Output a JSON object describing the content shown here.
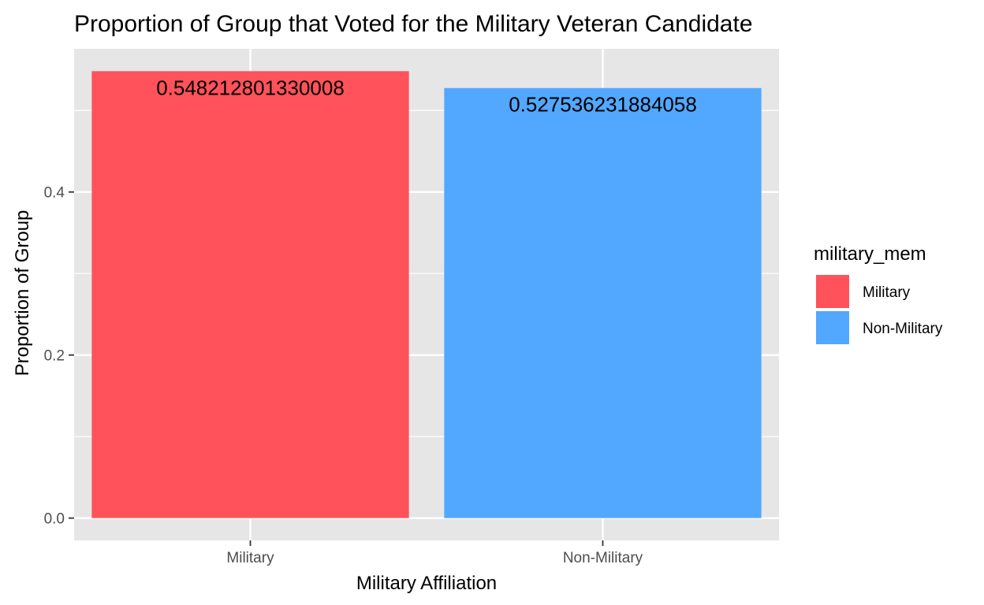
{
  "chart_data": {
    "type": "bar",
    "title": "Proportion of Group that Voted for the Military Veteran Candidate",
    "xlabel": "Military Affiliation",
    "ylabel": "Proportion of Group",
    "categories": [
      "Military",
      "Non-Military"
    ],
    "values": [
      0.548212801330008,
      0.527536231884058
    ],
    "data_labels": [
      "0.548212801330008",
      "0.527536231884058"
    ],
    "ylim": [
      -0.0274,
      0.5756
    ],
    "y_major_ticks": [
      0.0,
      0.2,
      0.4
    ],
    "y_tick_labels": [
      "0.0",
      "0.2",
      "0.4"
    ],
    "y_minor_ticks": [
      0.1,
      0.3,
      0.5
    ],
    "grid": true,
    "legend": {
      "title": "military_mem",
      "placement": "right",
      "entries": [
        "Military",
        "Non-Military"
      ]
    },
    "colors": {
      "Military": "#ff525a",
      "Non-Military": "#52a8ff",
      "panel_background": "#e6e6e6",
      "grid": "#ffffff"
    }
  }
}
